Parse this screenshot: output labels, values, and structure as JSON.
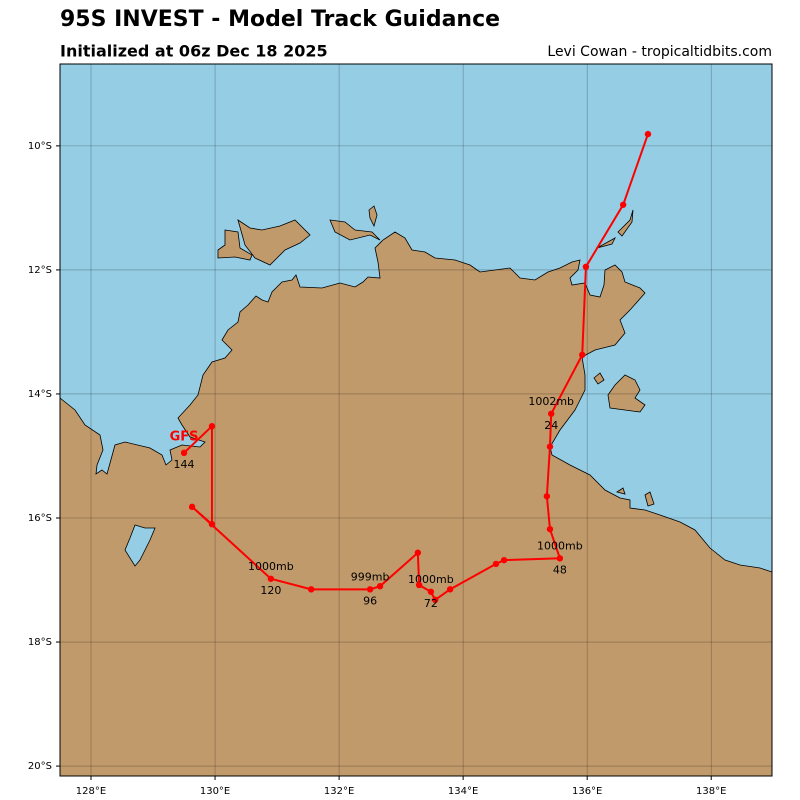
{
  "chart_data": {
    "type": "track",
    "title": "95S INVEST - Model Track Guidance",
    "subtitle": "Initialized at 06z Dec 18 2025",
    "credit": "Levi Cowan - tropicaltidbits.com",
    "xlim": [
      127.5,
      138.98
    ],
    "ylim": [
      -20.16,
      -8.68
    ],
    "xticks": [
      {
        "value": 128,
        "label": "128°E"
      },
      {
        "value": 130,
        "label": "130°E"
      },
      {
        "value": 132,
        "label": "132°E"
      },
      {
        "value": 134,
        "label": "134°E"
      },
      {
        "value": 136,
        "label": "136°E"
      },
      {
        "value": 138,
        "label": "138°E"
      }
    ],
    "yticks": [
      {
        "value": -10,
        "label": "10°S"
      },
      {
        "value": -12,
        "label": "12°S"
      },
      {
        "value": -14,
        "label": "14°S"
      },
      {
        "value": -16,
        "label": "16°S"
      },
      {
        "value": -18,
        "label": "18°S"
      },
      {
        "value": -20,
        "label": "20°S"
      }
    ],
    "grid": true,
    "series": [
      {
        "name": "GFS",
        "color": "#ff0000",
        "lon": [
          136.98,
          136.58,
          135.98,
          135.92,
          135.42,
          135.4,
          135.35,
          135.4,
          135.56,
          134.66,
          134.53,
          133.79,
          133.55,
          133.48,
          133.29,
          133.27,
          132.66,
          132.5,
          131.55,
          130.9,
          129.63,
          129.95,
          129.95,
          129.5
        ],
        "lat": [
          -9.81,
          -10.95,
          -11.95,
          -13.37,
          -14.32,
          -14.85,
          -15.65,
          -16.18,
          -16.65,
          -16.68,
          -16.74,
          -17.15,
          -17.32,
          -17.19,
          -17.08,
          -16.56,
          -17.1,
          -17.15,
          -17.15,
          -16.98,
          -15.82,
          -16.1,
          -14.52,
          -14.95
        ],
        "hour_labels": [
          null,
          null,
          null,
          null,
          "24",
          null,
          null,
          null,
          "48",
          null,
          null,
          null,
          null,
          "72",
          null,
          null,
          null,
          "96",
          null,
          "120",
          null,
          null,
          null,
          "144"
        ],
        "pressure_labels": [
          null,
          null,
          null,
          null,
          "1002mb",
          null,
          null,
          null,
          "1000mb",
          null,
          null,
          null,
          null,
          "1000mb",
          null,
          null,
          null,
          "999mb",
          null,
          "1000mb",
          null,
          null,
          null,
          null
        ]
      }
    ]
  }
}
